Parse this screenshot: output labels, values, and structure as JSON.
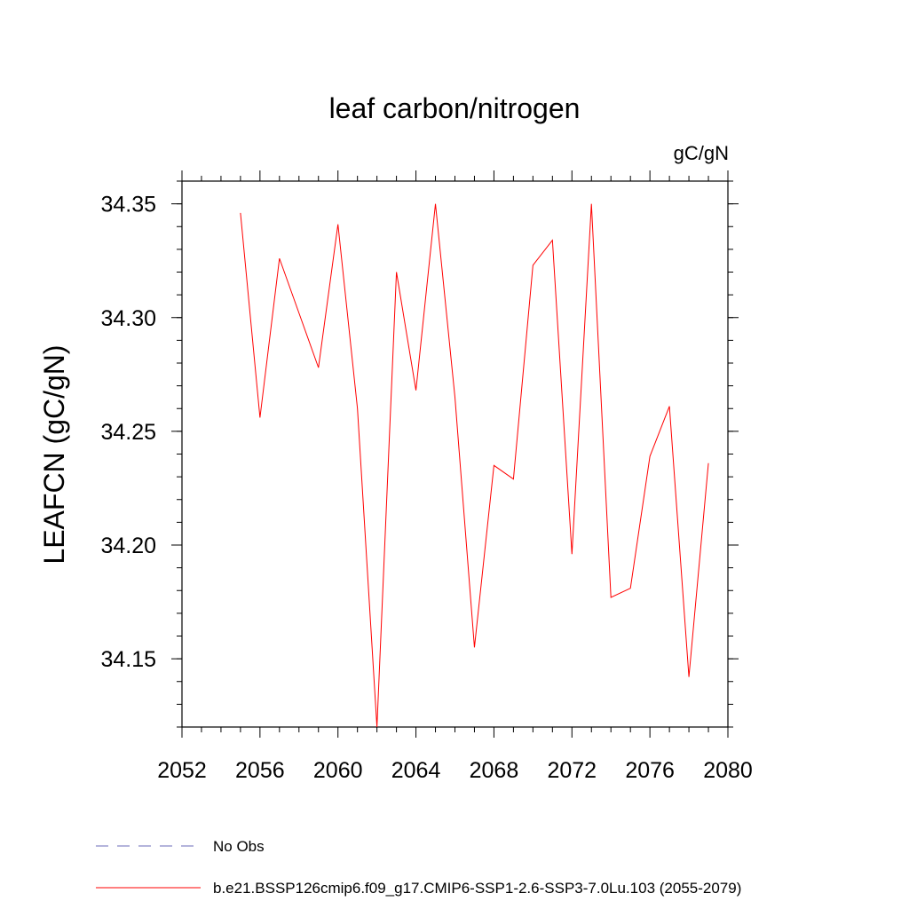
{
  "chart_data": {
    "type": "line",
    "title": "leaf carbon/nitrogen",
    "units_label": "gC/gN",
    "ylabel": "LEAFCN  (gC/gN)",
    "xlabel": "",
    "xlim": [
      2052,
      2080
    ],
    "ylim": [
      34.12,
      34.36
    ],
    "x_ticks": [
      2052,
      2056,
      2060,
      2064,
      2068,
      2072,
      2076,
      2080
    ],
    "x_tick_labels": [
      "2052",
      "2056",
      "2060",
      "2064",
      "2068",
      "2072",
      "2076",
      "2080"
    ],
    "y_ticks": [
      34.15,
      34.2,
      34.25,
      34.3,
      34.35
    ],
    "y_tick_labels": [
      "34.15",
      "34.20",
      "34.25",
      "34.30",
      "34.35"
    ],
    "series": [
      {
        "name": "b.e21.BSSP126cmip6.f09_g17.CMIP6-SSP1-2.6-SSP3-7.0Lu.103 (2055-2079)",
        "color": "#ff0000",
        "x": [
          2055,
          2056,
          2057,
          2058,
          2059,
          2060,
          2061,
          2062,
          2063,
          2064,
          2065,
          2066,
          2067,
          2068,
          2069,
          2070,
          2071,
          2072,
          2073,
          2074,
          2075,
          2076,
          2077,
          2078,
          2079
        ],
        "y": [
          34.346,
          34.256,
          34.326,
          34.302,
          34.278,
          34.341,
          34.26,
          34.12,
          34.32,
          34.268,
          34.35,
          34.265,
          34.155,
          34.235,
          34.229,
          34.323,
          34.334,
          34.196,
          34.35,
          34.177,
          34.181,
          34.239,
          34.261,
          34.142,
          34.236
        ]
      }
    ],
    "legend": [
      {
        "label": "No Obs",
        "color": "#6a6ab8",
        "style": "dashed"
      },
      {
        "label": "b.e21.BSSP126cmip6.f09_g17.CMIP6-SSP1-2.6-SSP3-7.0Lu.103 (2055-2079)",
        "color": "#ff0000",
        "style": "solid"
      }
    ],
    "legend_placement": "bottom-left",
    "grid": false
  }
}
